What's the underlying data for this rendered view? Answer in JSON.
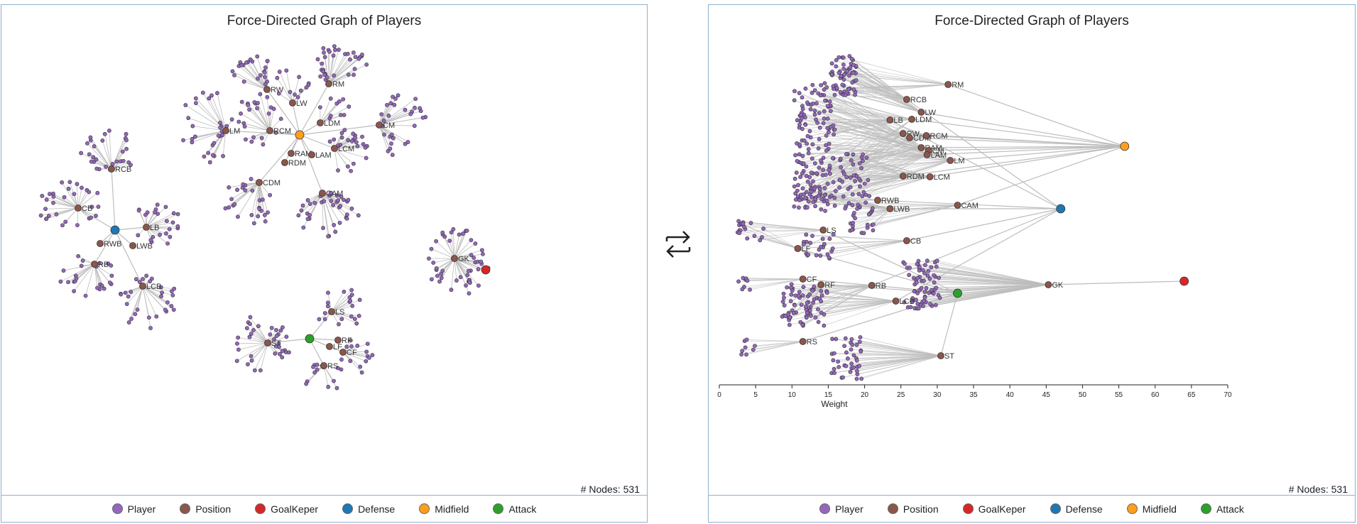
{
  "colors": {
    "player": "#9467bd",
    "position": "#8c564b",
    "goalkeeper": "#d62728",
    "defense": "#1f77b4",
    "midfield": "#ff9f1c",
    "attack": "#2ca02c",
    "link": "#bdbdbd",
    "border": "#8fb0cf"
  },
  "legend": [
    {
      "label": "Player",
      "category": "player"
    },
    {
      "label": "Position",
      "category": "position"
    },
    {
      "label": "GoalKeper",
      "category": "goalkeeper"
    },
    {
      "label": "Defense",
      "category": "defense"
    },
    {
      "label": "Midfield",
      "category": "midfield"
    },
    {
      "label": "Attack",
      "category": "attack"
    }
  ],
  "left_panel": {
    "title": "Force-Directed Graph of Players",
    "node_count": "# Nodes: 531"
  },
  "right_panel": {
    "title": "Force-Directed Graph of Players",
    "node_count": "# Nodes: 531",
    "x_axis": {
      "label": "Weight",
      "min": 0,
      "max": 70,
      "ticks": [
        0,
        5,
        10,
        15,
        20,
        25,
        30,
        35,
        40,
        45,
        50,
        55,
        60,
        65,
        70
      ]
    }
  },
  "positions": [
    {
      "label": "RM",
      "group": "midfield",
      "weight": 31.5
    },
    {
      "label": "RCB",
      "group": "defense",
      "weight": 25.8
    },
    {
      "label": "LW",
      "group": "midfield",
      "weight": 27.8
    },
    {
      "label": "LB",
      "group": "defense",
      "weight": 23.5
    },
    {
      "label": "LDM",
      "group": "midfield",
      "weight": 26.5
    },
    {
      "label": "RW",
      "group": "midfield",
      "weight": 25.3
    },
    {
      "label": "CDM",
      "group": "midfield",
      "weight": 26.2
    },
    {
      "label": "RCM",
      "group": "midfield",
      "weight": 28.5
    },
    {
      "label": "RAM",
      "group": "midfield",
      "weight": 27.8
    },
    {
      "label": "CM",
      "group": "midfield",
      "weight": 28.8
    },
    {
      "label": "LAM",
      "group": "midfield",
      "weight": 28.6
    },
    {
      "label": "LM",
      "group": "midfield",
      "weight": 31.8
    },
    {
      "label": "RDM",
      "group": "midfield",
      "weight": 25.3
    },
    {
      "label": "LCM",
      "group": "midfield",
      "weight": 29.0
    },
    {
      "label": "RWB",
      "group": "defense",
      "weight": 21.8
    },
    {
      "label": "LWB",
      "group": "defense",
      "weight": 23.5
    },
    {
      "label": "CAM",
      "group": "midfield",
      "weight": 32.8
    },
    {
      "label": "LS",
      "group": "attack",
      "weight": 14.3
    },
    {
      "label": "LF",
      "group": "attack",
      "weight": 10.8
    },
    {
      "label": "CB",
      "group": "defense",
      "weight": 25.8
    },
    {
      "label": "CF",
      "group": "attack",
      "weight": 11.5
    },
    {
      "label": "RF",
      "group": "attack",
      "weight": 14.0
    },
    {
      "label": "RB",
      "group": "defense",
      "weight": 21.0
    },
    {
      "label": "LCB",
      "group": "defense",
      "weight": 24.3
    },
    {
      "label": "GK",
      "group": "goalkeeper",
      "weight": 45.3
    },
    {
      "label": "RS",
      "group": "attack",
      "weight": 11.5
    },
    {
      "label": "ST",
      "group": "attack",
      "weight": 30.5
    }
  ],
  "group_hubs": [
    {
      "category": "midfield",
      "weight": 55.8
    },
    {
      "category": "defense",
      "weight": 47.0
    },
    {
      "category": "goalkeeper",
      "weight": 64.0
    },
    {
      "category": "attack",
      "weight": 32.8
    }
  ]
}
